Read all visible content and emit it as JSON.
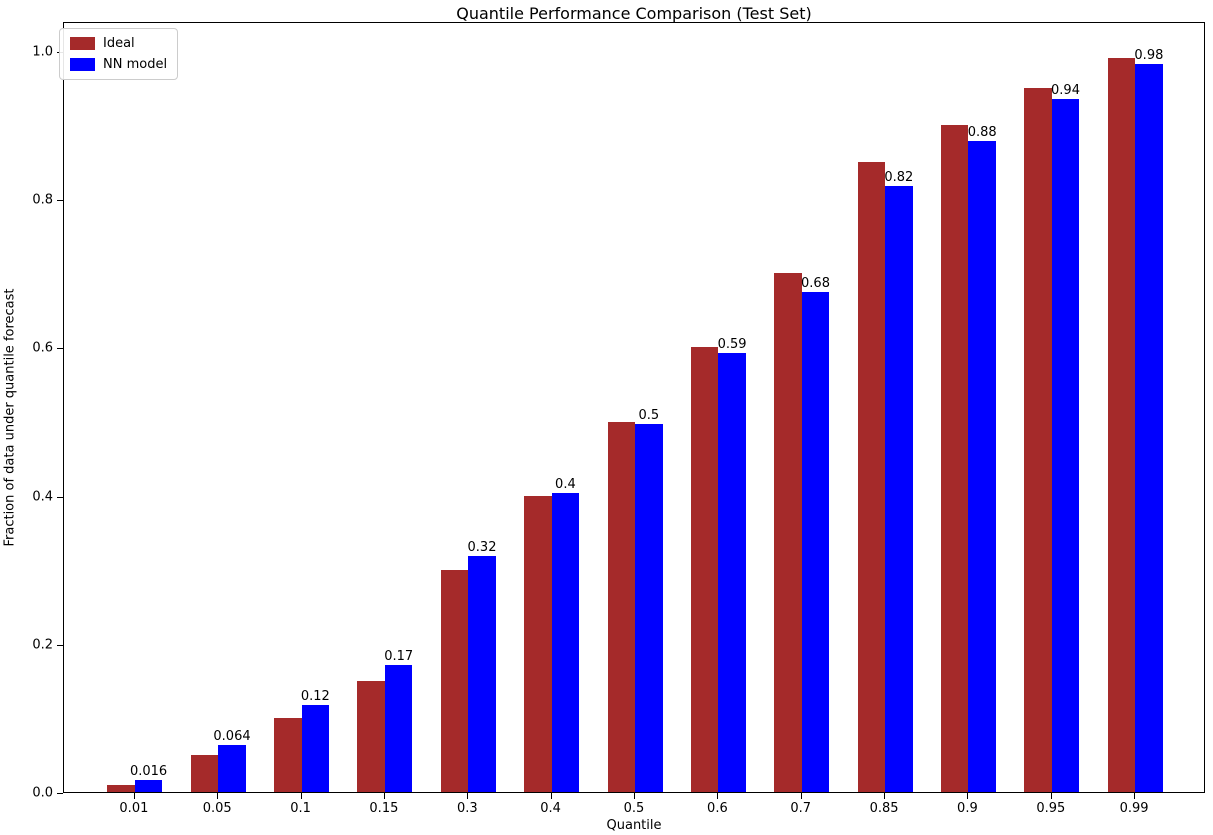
{
  "chart_data": {
    "type": "bar",
    "title": "Quantile Performance Comparison (Test Set)",
    "xlabel": "Quantile",
    "ylabel": "Fraction of data under quantile forecast",
    "categories": [
      "0.01",
      "0.05",
      "0.1",
      "0.15",
      "0.3",
      "0.4",
      "0.5",
      "0.6",
      "0.7",
      "0.85",
      "0.9",
      "0.95",
      "0.99"
    ],
    "series": [
      {
        "name": "Ideal",
        "color": "#a52a2a",
        "values": [
          0.01,
          0.05,
          0.1,
          0.15,
          0.3,
          0.4,
          0.5,
          0.6,
          0.7,
          0.85,
          0.9,
          0.95,
          0.99
        ]
      },
      {
        "name": "NN model",
        "color": "#0000ff",
        "values": [
          0.016,
          0.064,
          0.117,
          0.171,
          0.319,
          0.404,
          0.497,
          0.592,
          0.675,
          0.818,
          0.878,
          0.935,
          0.983
        ],
        "labels": [
          "0.016",
          "0.064",
          "0.12",
          "0.17",
          "0.32",
          "0.4",
          "0.5",
          "0.59",
          "0.68",
          "0.82",
          "0.88",
          "0.94",
          "0.98"
        ]
      }
    ],
    "yticks": [
      0.0,
      0.2,
      0.4,
      0.6,
      0.8,
      1.0
    ],
    "ytick_labels": [
      "0.0",
      "0.2",
      "0.4",
      "0.6",
      "0.8",
      "1.0"
    ],
    "ylim": [
      0,
      1.0405
    ],
    "xlim_units": 13.7,
    "x_offset_units": 0.85,
    "bar_width_units": 0.33,
    "legend_position": "upper-left",
    "grid": false
  }
}
